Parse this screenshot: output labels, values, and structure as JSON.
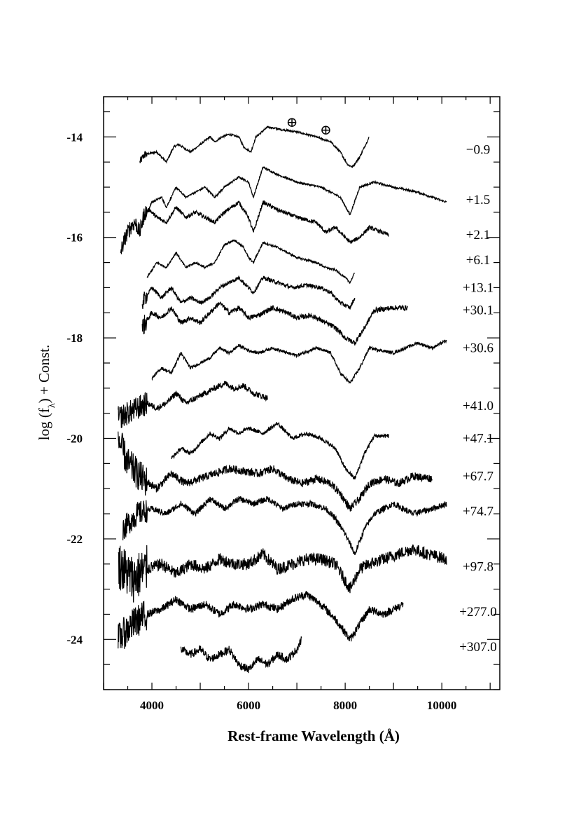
{
  "chart_data": {
    "type": "line",
    "title": "",
    "xlabel": "Rest-frame Wavelength (Å)",
    "ylabel": "log (fλ) + Const.",
    "ylabel_parts": {
      "pre": "log (f",
      "sub": "λ",
      "post": ") + Const."
    },
    "xlim": [
      3000,
      11200
    ],
    "ylim": [
      -25,
      -13.2
    ],
    "xticks": [
      4000,
      6000,
      8000,
      10000
    ],
    "xtick_labels": [
      "4000",
      "6000",
      "8000",
      "10000"
    ],
    "xminor_step": 500,
    "yticks": [
      -14,
      -16,
      -18,
      -20,
      -22,
      -24
    ],
    "ytick_labels": [
      "-14",
      "-16",
      "-18",
      "-20",
      "-22",
      "-24"
    ],
    "yminor_step": 0.5,
    "grid": false,
    "telluric_markers": [
      {
        "x": 6900,
        "y": -13.8,
        "symbol": "⊕"
      },
      {
        "x": 7600,
        "y": -13.95,
        "symbol": "⊕"
      }
    ],
    "series": [
      {
        "label": "−0.9",
        "start": 3750,
        "end": 8500,
        "offset": -14.5,
        "label_y": -14.25,
        "noise": 0.02,
        "x": [
          3750,
          3850,
          4100,
          4300,
          4450,
          4550,
          4800,
          5000,
          5200,
          5300,
          5450,
          5600,
          5800,
          5900,
          6050,
          6150,
          6400,
          6650,
          7000,
          7400,
          7700,
          7900,
          8050,
          8150,
          8300,
          8500
        ],
        "y": [
          -14.5,
          -14.35,
          -14.3,
          -14.5,
          -14.2,
          -14.15,
          -14.3,
          -14.15,
          -14.0,
          -14.1,
          -14.0,
          -13.95,
          -14.0,
          -14.2,
          -14.3,
          -14.0,
          -13.8,
          -13.85,
          -13.9,
          -14.0,
          -14.1,
          -14.3,
          -14.55,
          -14.6,
          -14.4,
          -14.0
        ]
      },
      {
        "label": "+1.5",
        "start": 3800,
        "end": 10100,
        "offset": -15.2,
        "label_y": -15.25,
        "noise": 0.02,
        "x": [
          3800,
          4000,
          4200,
          4300,
          4500,
          4700,
          4900,
          5100,
          5300,
          5500,
          5800,
          6000,
          6100,
          6300,
          6600,
          7000,
          7500,
          7900,
          8100,
          8300,
          8600,
          9000,
          9500,
          10100
        ],
        "y": [
          -15.7,
          -15.3,
          -15.2,
          -15.4,
          -15.0,
          -15.2,
          -15.1,
          -15.0,
          -15.2,
          -15.0,
          -14.8,
          -14.9,
          -15.2,
          -14.6,
          -14.75,
          -14.9,
          -15.0,
          -15.2,
          -15.55,
          -15.0,
          -14.9,
          -15.0,
          -15.1,
          -15.3
        ]
      },
      {
        "label": "+2.1",
        "start": 3350,
        "end": 8900,
        "offset": -15.8,
        "label_y": -15.95,
        "noise": 0.04,
        "x": [
          3350,
          3450,
          3550,
          3650,
          3750,
          3850,
          3950,
          4100,
          4300,
          4500,
          4700,
          4900,
          5100,
          5300,
          5500,
          5800,
          6000,
          6100,
          6300,
          6600,
          7000,
          7400,
          7600,
          7800,
          8100,
          8300,
          8500,
          8900
        ],
        "y": [
          -16.3,
          -16.0,
          -15.8,
          -15.7,
          -15.9,
          -15.5,
          -15.45,
          -15.6,
          -15.7,
          -15.4,
          -15.6,
          -15.5,
          -15.6,
          -15.7,
          -15.5,
          -15.3,
          -15.6,
          -15.9,
          -15.3,
          -15.45,
          -15.6,
          -15.7,
          -15.9,
          -15.8,
          -16.1,
          -16.0,
          -15.8,
          -15.95
        ]
      },
      {
        "label": "+6.1",
        "start": 3900,
        "end": 8200,
        "offset": -16.7,
        "label_y": -16.45,
        "noise": 0.02,
        "x": [
          3900,
          4100,
          4300,
          4500,
          4700,
          4900,
          5100,
          5300,
          5500,
          5700,
          5900,
          6000,
          6100,
          6300,
          6600,
          7000,
          7400,
          7600,
          7800,
          8000,
          8100,
          8200
        ],
        "y": [
          -16.8,
          -16.5,
          -16.6,
          -16.3,
          -16.6,
          -16.5,
          -16.6,
          -16.5,
          -16.15,
          -16.05,
          -16.2,
          -16.4,
          -16.5,
          -16.1,
          -16.2,
          -16.4,
          -16.5,
          -16.6,
          -16.65,
          -16.8,
          -16.9,
          -16.7
        ]
      },
      {
        "label": "+13.1",
        "start": 3800,
        "end": 8200,
        "offset": -17.2,
        "label_y": -17.0,
        "noise": 0.04,
        "x": [
          3800,
          4000,
          4200,
          4400,
          4600,
          4800,
          5000,
          5200,
          5400,
          5600,
          5800,
          6000,
          6100,
          6300,
          6600,
          6900,
          7200,
          7500,
          7700,
          7900,
          8100,
          8200
        ],
        "y": [
          -17.3,
          -17.0,
          -17.2,
          -17.0,
          -17.3,
          -17.2,
          -17.3,
          -17.2,
          -17.0,
          -16.9,
          -16.8,
          -17.0,
          -17.1,
          -16.8,
          -16.9,
          -17.0,
          -16.95,
          -17.0,
          -17.1,
          -17.3,
          -17.4,
          -17.2
        ]
      },
      {
        "label": "+30.1",
        "start": 3800,
        "end": 9300,
        "offset": -17.7,
        "label_y": -17.45,
        "noise": 0.05,
        "x": [
          3800,
          4000,
          4200,
          4400,
          4600,
          4800,
          5000,
          5200,
          5400,
          5600,
          5800,
          6000,
          6200,
          6500,
          6800,
          7000,
          7300,
          7600,
          7800,
          8000,
          8200,
          8400,
          8600,
          9000,
          9300
        ],
        "y": [
          -17.8,
          -17.5,
          -17.6,
          -17.4,
          -17.7,
          -17.6,
          -17.7,
          -17.5,
          -17.3,
          -17.5,
          -17.4,
          -17.6,
          -17.55,
          -17.4,
          -17.5,
          -17.6,
          -17.55,
          -17.7,
          -17.8,
          -18.0,
          -18.1,
          -17.8,
          -17.45,
          -17.4,
          -17.4
        ]
      },
      {
        "label": "+30.6",
        "start": 4000,
        "end": 10100,
        "offset": -18.6,
        "label_y": -18.2,
        "noise": 0.03,
        "x": [
          4000,
          4200,
          4400,
          4600,
          4800,
          5000,
          5200,
          5400,
          5600,
          5800,
          6000,
          6200,
          6500,
          6800,
          7000,
          7400,
          7700,
          7900,
          8100,
          8300,
          8500,
          9000,
          9500,
          9800,
          10100
        ],
        "y": [
          -18.8,
          -18.6,
          -18.7,
          -18.3,
          -18.6,
          -18.5,
          -18.4,
          -18.2,
          -18.3,
          -18.15,
          -18.25,
          -18.3,
          -18.2,
          -18.3,
          -18.35,
          -18.2,
          -18.3,
          -18.7,
          -18.9,
          -18.6,
          -18.2,
          -18.3,
          -18.1,
          -18.2,
          -18.05
        ]
      },
      {
        "label": "+41.0",
        "start": 3300,
        "end": 6400,
        "offset": -19.4,
        "label_y": -19.35,
        "noise": 0.06,
        "x": [
          3300,
          3500,
          3700,
          3900,
          4100,
          4300,
          4500,
          4700,
          4900,
          5100,
          5300,
          5500,
          5700,
          5900,
          6100,
          6400
        ],
        "y": [
          -19.6,
          -19.5,
          -19.4,
          -19.3,
          -19.4,
          -19.3,
          -19.1,
          -19.3,
          -19.2,
          -19.1,
          -19.0,
          -18.9,
          -19.0,
          -18.95,
          -19.1,
          -19.2
        ]
      },
      {
        "label": "+47.1",
        "start": 4400,
        "end": 8900,
        "offset": -20.1,
        "label_y": -20.0,
        "noise": 0.04,
        "x": [
          4400,
          4600,
          4800,
          5000,
          5200,
          5400,
          5600,
          5800,
          6000,
          6300,
          6600,
          6900,
          7200,
          7500,
          7800,
          8000,
          8200,
          8400,
          8600,
          8900
        ],
        "y": [
          -20.4,
          -20.2,
          -20.3,
          -20.1,
          -19.9,
          -20.0,
          -19.8,
          -19.9,
          -19.8,
          -19.9,
          -19.7,
          -20.0,
          -19.9,
          -20.0,
          -20.2,
          -20.6,
          -20.8,
          -20.3,
          -19.95,
          -19.95
        ]
      },
      {
        "label": "+67.7",
        "start": 3300,
        "end": 9800,
        "offset": -21.0,
        "label_y": -20.75,
        "noise": 0.08,
        "x": [
          3300,
          3500,
          3800,
          4100,
          4400,
          4700,
          5000,
          5300,
          5600,
          5900,
          6200,
          6500,
          6800,
          7100,
          7400,
          7700,
          7900,
          8100,
          8300,
          8500,
          8800,
          9100,
          9400,
          9800
        ],
        "y": [
          -20.0,
          -20.5,
          -20.8,
          -21.0,
          -20.7,
          -20.9,
          -20.8,
          -20.7,
          -20.6,
          -20.65,
          -20.7,
          -20.6,
          -20.8,
          -20.9,
          -20.8,
          -20.9,
          -21.1,
          -21.4,
          -21.2,
          -20.9,
          -20.8,
          -20.9,
          -20.75,
          -20.8
        ]
      },
      {
        "label": "+74.7",
        "start": 3400,
        "end": 10100,
        "offset": -21.6,
        "label_y": -21.45,
        "noise": 0.06,
        "x": [
          3400,
          3700,
          4000,
          4300,
          4600,
          4900,
          5200,
          5500,
          5800,
          6100,
          6400,
          6700,
          7000,
          7300,
          7600,
          7800,
          8000,
          8200,
          8400,
          8600,
          9000,
          9400,
          9800,
          10100
        ],
        "y": [
          -21.8,
          -21.5,
          -21.4,
          -21.5,
          -21.3,
          -21.5,
          -21.2,
          -21.4,
          -21.2,
          -21.3,
          -21.2,
          -21.4,
          -21.3,
          -21.3,
          -21.4,
          -21.6,
          -21.9,
          -22.3,
          -21.8,
          -21.5,
          -21.3,
          -21.5,
          -21.4,
          -21.3
        ]
      },
      {
        "label": "+97.8",
        "start": 3300,
        "end": 10100,
        "offset": -22.6,
        "label_y": -22.55,
        "noise": 0.12,
        "x": [
          3300,
          3600,
          3900,
          4200,
          4500,
          4800,
          5100,
          5400,
          5700,
          6000,
          6300,
          6600,
          6900,
          7200,
          7500,
          7800,
          8100,
          8300,
          8500,
          8800,
          9100,
          9400,
          9700,
          10100
        ],
        "y": [
          -22.5,
          -22.8,
          -22.6,
          -22.5,
          -22.7,
          -22.5,
          -22.6,
          -22.4,
          -22.5,
          -22.5,
          -22.3,
          -22.6,
          -22.5,
          -22.4,
          -22.4,
          -22.5,
          -23.0,
          -22.6,
          -22.5,
          -22.4,
          -22.3,
          -22.2,
          -22.3,
          -22.4
        ]
      },
      {
        "label": "+277.0",
        "start": 3300,
        "end": 9200,
        "offset": -23.5,
        "label_y": -23.45,
        "noise": 0.08,
        "x": [
          3300,
          3600,
          3900,
          4200,
          4500,
          4800,
          5100,
          5400,
          5700,
          6000,
          6300,
          6600,
          6900,
          7200,
          7500,
          7800,
          8100,
          8300,
          8500,
          8800,
          9200
        ],
        "y": [
          -24.0,
          -23.7,
          -23.5,
          -23.4,
          -23.2,
          -23.4,
          -23.3,
          -23.5,
          -23.3,
          -23.4,
          -23.3,
          -23.4,
          -23.2,
          -23.1,
          -23.3,
          -23.6,
          -24.0,
          -23.7,
          -23.4,
          -23.5,
          -23.3
        ]
      },
      {
        "label": "+307.0",
        "start": 4600,
        "end": 7100,
        "offset": -24.4,
        "label_y": -24.15,
        "noise": 0.08,
        "x": [
          4600,
          4800,
          5000,
          5200,
          5400,
          5600,
          5800,
          6000,
          6200,
          6400,
          6600,
          6800,
          7000,
          7100
        ],
        "y": [
          -24.2,
          -24.3,
          -24.2,
          -24.4,
          -24.3,
          -24.2,
          -24.5,
          -24.6,
          -24.4,
          -24.5,
          -24.3,
          -24.4,
          -24.2,
          -24.0
        ]
      }
    ]
  }
}
